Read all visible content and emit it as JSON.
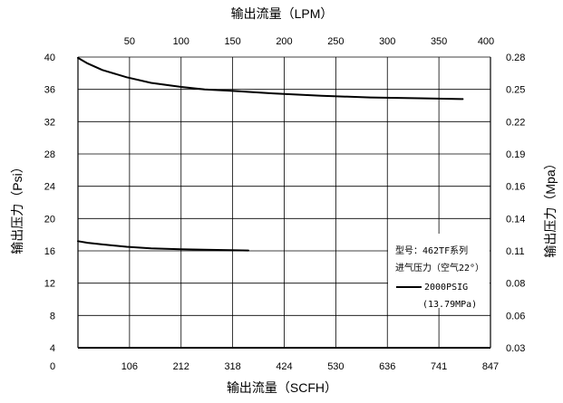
{
  "chart_data": {
    "type": "line",
    "title": "",
    "xlabel_top": "输出流量（LPM）",
    "xlabel_bottom": "输出流量（SCFH）",
    "ylabel_left": "输出压力（Psi）",
    "ylabel_right": "输出压力（Mpa）",
    "x_unit": "SCFH",
    "xlim": [
      0,
      847
    ],
    "ylim": [
      4,
      40
    ],
    "x_bottom_ticks": [
      "0",
      "106",
      "212",
      "318",
      "424",
      "530",
      "636",
      "741",
      "847"
    ],
    "x_top_ticks": [
      "50",
      "100",
      "150",
      "200",
      "250",
      "300",
      "350",
      "400"
    ],
    "y_left_ticks": [
      "4",
      "8",
      "12",
      "16",
      "20",
      "24",
      "28",
      "32",
      "36",
      "40"
    ],
    "y_right_ticks": [
      "0.03",
      "0.06",
      "0.08",
      "0.11",
      "0.14",
      "0.16",
      "0.19",
      "0.22",
      "0.25",
      "0.28"
    ],
    "grid": true,
    "legend": {
      "placement": "right",
      "lines": [
        "型号：462TF系列",
        "进气压力（空气22°）",
        "2000PSIG",
        "(13.79MPa)"
      ]
    },
    "series": [
      {
        "x": [
          0,
          20,
          50,
          100,
          150,
          212,
          260,
          318,
          400,
          500,
          600,
          700,
          790
        ],
        "values": [
          39.9,
          39.2,
          38.4,
          37.5,
          36.8,
          36.3,
          36.0,
          35.8,
          35.5,
          35.2,
          35.0,
          34.9,
          34.8
        ]
      },
      {
        "x": [
          0,
          20,
          50,
          100,
          150,
          212,
          260,
          300,
          350
        ],
        "values": [
          17.2,
          17.0,
          16.8,
          16.5,
          16.3,
          16.2,
          16.15,
          16.1,
          16.05
        ]
      }
    ]
  }
}
